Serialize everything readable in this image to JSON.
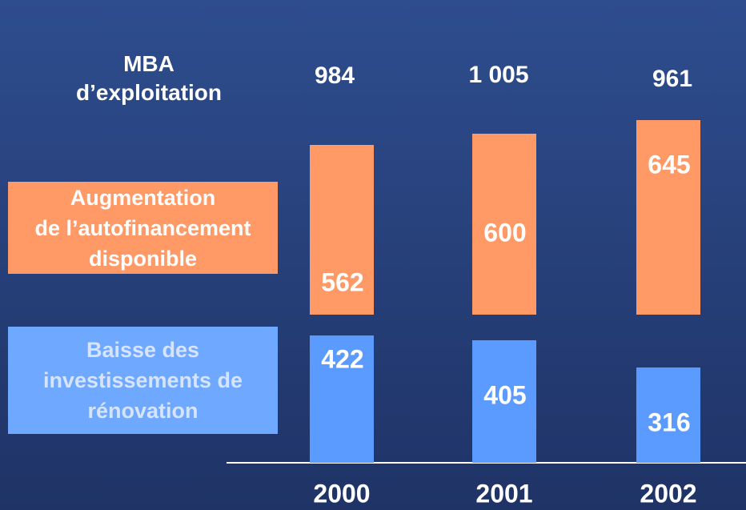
{
  "chart_data": {
    "type": "bar",
    "categories": [
      "2000",
      "2001",
      "2002"
    ],
    "totals": {
      "name": "MBA\nd’exploitation",
      "values": [
        984,
        1005,
        961
      ],
      "value_labels": [
        "984",
        "1 005",
        "961"
      ]
    },
    "series": [
      {
        "name": "Augmentation\nde l’autofinancement\ndisponible",
        "color": "#ff9966",
        "values": [
          562,
          600,
          645
        ]
      },
      {
        "name": "Baisse des\ninvestissements de\nrénovation",
        "color": "#5b9bff",
        "values": [
          422,
          405,
          316
        ]
      }
    ]
  }
}
